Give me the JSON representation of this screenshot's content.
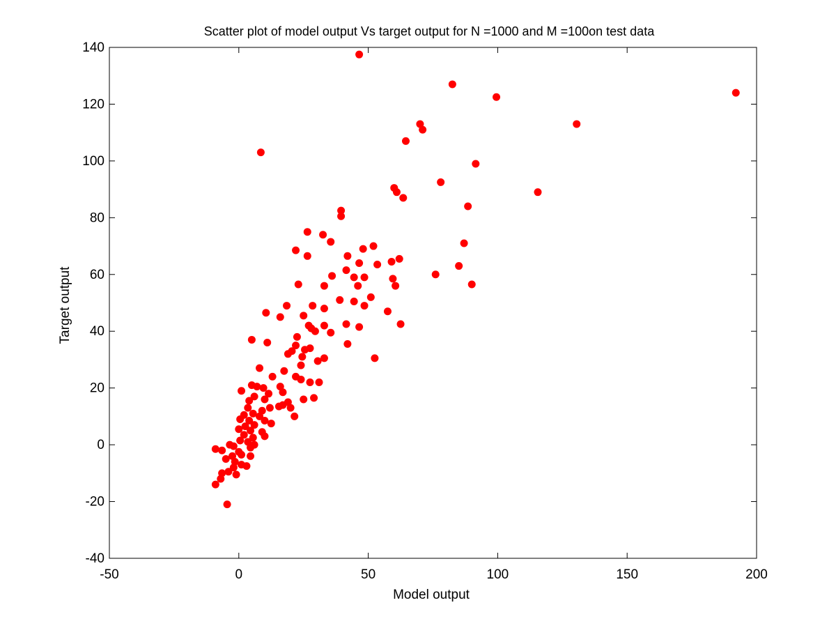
{
  "chart_data": {
    "type": "scatter",
    "title": "Scatter plot of model output Vs target output for N =1000 and M =100on test data",
    "xlabel": "Model output",
    "ylabel": "Target output",
    "xlim": [
      -50,
      200
    ],
    "ylim": [
      -40,
      140
    ],
    "xticks": [
      -50,
      0,
      50,
      100,
      150,
      200
    ],
    "yticks": [
      -40,
      -20,
      0,
      20,
      40,
      60,
      80,
      100,
      120,
      140
    ],
    "grid": false,
    "marker_color": "#ff0000",
    "points": [
      [
        46.5,
        137.5
      ],
      [
        82.5,
        127
      ],
      [
        99.5,
        122.5
      ],
      [
        192,
        124
      ],
      [
        130.5,
        113
      ],
      [
        70,
        113
      ],
      [
        71,
        111
      ],
      [
        64.5,
        107
      ],
      [
        8.5,
        103
      ],
      [
        91.5,
        99
      ],
      [
        78,
        92.5
      ],
      [
        60,
        90.5
      ],
      [
        61,
        89
      ],
      [
        115.5,
        89
      ],
      [
        63.5,
        87
      ],
      [
        88.5,
        84
      ],
      [
        39.5,
        82.5
      ],
      [
        39.5,
        80.5
      ],
      [
        26.5,
        75
      ],
      [
        32.5,
        74
      ],
      [
        35.5,
        71.5
      ],
      [
        87,
        71
      ],
      [
        52,
        70
      ],
      [
        48,
        69
      ],
      [
        22,
        68.5
      ],
      [
        26.5,
        66.5
      ],
      [
        42,
        66.5
      ],
      [
        62,
        65.5
      ],
      [
        59,
        64.5
      ],
      [
        46.5,
        64
      ],
      [
        53.5,
        63.5
      ],
      [
        85,
        63
      ],
      [
        41.5,
        61.5
      ],
      [
        76,
        60
      ],
      [
        36,
        59.5
      ],
      [
        44.5,
        59
      ],
      [
        48.5,
        59
      ],
      [
        59.5,
        58.5
      ],
      [
        90,
        56.5
      ],
      [
        23,
        56.5
      ],
      [
        33,
        56
      ],
      [
        46,
        56
      ],
      [
        60.5,
        56
      ],
      [
        51,
        52
      ],
      [
        39,
        51
      ],
      [
        44.5,
        50.5
      ],
      [
        28.5,
        49
      ],
      [
        48.5,
        49
      ],
      [
        18.5,
        49
      ],
      [
        33,
        48
      ],
      [
        57.5,
        47
      ],
      [
        10.5,
        46.5
      ],
      [
        16,
        45
      ],
      [
        25,
        45.5
      ],
      [
        33,
        42
      ],
      [
        27,
        42
      ],
      [
        41.5,
        42.5
      ],
      [
        62.5,
        42.5
      ],
      [
        46.5,
        41.5
      ],
      [
        28,
        41
      ],
      [
        29.5,
        40
      ],
      [
        35.5,
        39.5
      ],
      [
        22.5,
        38
      ],
      [
        5,
        37
      ],
      [
        11,
        36
      ],
      [
        42,
        35.5
      ],
      [
        22,
        35
      ],
      [
        27.5,
        34
      ],
      [
        25.5,
        33.5
      ],
      [
        20.5,
        33
      ],
      [
        19,
        32
      ],
      [
        24.5,
        31
      ],
      [
        33,
        30.5
      ],
      [
        30.5,
        29.5
      ],
      [
        24,
        28
      ],
      [
        52.5,
        30.5
      ],
      [
        8,
        27
      ],
      [
        17.5,
        26
      ],
      [
        13,
        24
      ],
      [
        22,
        24
      ],
      [
        31,
        22
      ],
      [
        24,
        23
      ],
      [
        27.5,
        22
      ],
      [
        16,
        20.5
      ],
      [
        7,
        20.5
      ],
      [
        1,
        19
      ],
      [
        5,
        21
      ],
      [
        9.5,
        20
      ],
      [
        17,
        18.5
      ],
      [
        11.5,
        18
      ],
      [
        6,
        17
      ],
      [
        29,
        16.5
      ],
      [
        25,
        16
      ],
      [
        10,
        16
      ],
      [
        4,
        15.5
      ],
      [
        19,
        15
      ],
      [
        17,
        14
      ],
      [
        15.5,
        13.5
      ],
      [
        20,
        13
      ],
      [
        12,
        13
      ],
      [
        3.5,
        13
      ],
      [
        9,
        12
      ],
      [
        5.5,
        11
      ],
      [
        2,
        10.5
      ],
      [
        8,
        10
      ],
      [
        21.5,
        10
      ],
      [
        0.5,
        9
      ],
      [
        4,
        8.5
      ],
      [
        10,
        8.5
      ],
      [
        12.5,
        7.5
      ],
      [
        6,
        7
      ],
      [
        2.5,
        6.5
      ],
      [
        0,
        5.5
      ],
      [
        4.5,
        5
      ],
      [
        9,
        4.5
      ],
      [
        2,
        3.5
      ],
      [
        5.5,
        2.5
      ],
      [
        10,
        3
      ],
      [
        0.5,
        1.5
      ],
      [
        3.5,
        1
      ],
      [
        6,
        0
      ],
      [
        4.5,
        -1
      ],
      [
        -2,
        -0.5
      ],
      [
        -3.5,
        0
      ],
      [
        -9,
        -1.5
      ],
      [
        -6.5,
        -2
      ],
      [
        0,
        -2.5
      ],
      [
        1,
        -3.5
      ],
      [
        -2.5,
        -4
      ],
      [
        4.5,
        -4
      ],
      [
        -5,
        -5
      ],
      [
        -1.5,
        -6
      ],
      [
        1,
        -7
      ],
      [
        3,
        -7.5
      ],
      [
        -2,
        -8
      ],
      [
        -4,
        -9.5
      ],
      [
        -6.5,
        -10
      ],
      [
        -1,
        -10.5
      ],
      [
        -7,
        -12
      ],
      [
        -9,
        -14
      ],
      [
        -4.5,
        -21
      ]
    ]
  }
}
